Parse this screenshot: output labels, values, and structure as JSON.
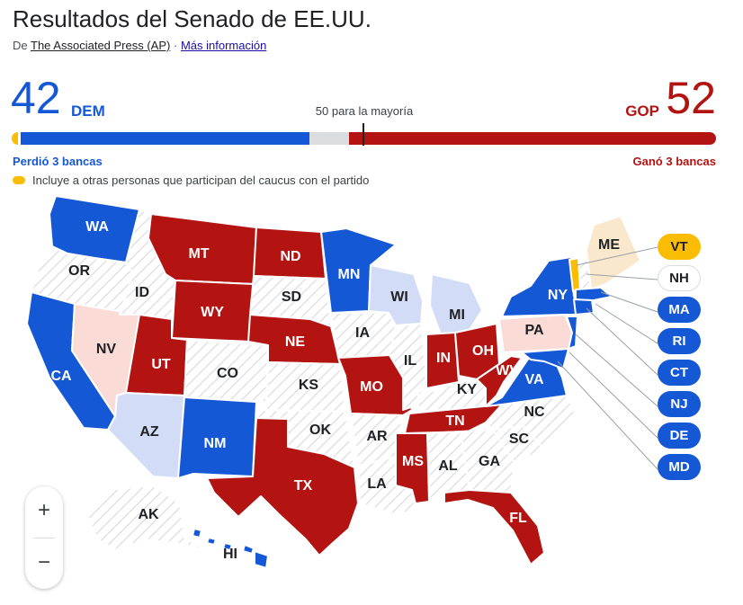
{
  "header": {
    "title": "Resultados del Senado de EE.UU.",
    "source_prefix": "De",
    "source_name": "The Associated Press (AP)",
    "separator": "·",
    "more_info": "Más información"
  },
  "tally": {
    "dem_count": "42",
    "dem_label": "DEM",
    "gop_label": "GOP",
    "gop_count": "52",
    "majority_label": "50 para la mayoría",
    "dem_status": "Perdió 3 bancas",
    "gop_status": "Ganó 3 bancas",
    "legend_text": "Incluye a otras personas que participan del caucus con el partido"
  },
  "colors": {
    "dem": "#1558d6",
    "gop": "#b31412",
    "independent": "#fbbc04",
    "dem_light": "#d2dcf7",
    "gop_light": "#fadbd6",
    "ind_light": "#f9e8cc",
    "no_election": "#ffffff"
  },
  "states": {
    "WA": "WA",
    "OR": "OR",
    "CA": "CA",
    "NV": "NV",
    "ID": "ID",
    "MT": "MT",
    "WY": "WY",
    "UT": "UT",
    "AZ": "AZ",
    "CO": "CO",
    "NM": "NM",
    "ND": "ND",
    "SD": "SD",
    "NE": "NE",
    "KS": "KS",
    "OK": "OK",
    "TX": "TX",
    "MN": "MN",
    "IA": "IA",
    "MO": "MO",
    "AR": "AR",
    "LA": "LA",
    "WI": "WI",
    "IL": "IL",
    "MI": "MI",
    "IN": "IN",
    "OH": "OH",
    "KY": "KY",
    "TN": "TN",
    "MS": "MS",
    "AL": "AL",
    "GA": "GA",
    "FL": "FL",
    "SC": "SC",
    "NC": "NC",
    "VA": "VA",
    "WV": "WV",
    "PA": "PA",
    "NY": "NY",
    "ME": "ME",
    "AK": "AK",
    "HI": "HI"
  },
  "small_states": [
    {
      "label": "VT",
      "party": "ind"
    },
    {
      "label": "NH",
      "party": "none"
    },
    {
      "label": "MA",
      "party": "dem"
    },
    {
      "label": "RI",
      "party": "dem"
    },
    {
      "label": "CT",
      "party": "dem"
    },
    {
      "label": "NJ",
      "party": "dem"
    },
    {
      "label": "DE",
      "party": "dem"
    },
    {
      "label": "MD",
      "party": "dem"
    }
  ],
  "zoom": {
    "in": "+",
    "out": "−"
  }
}
